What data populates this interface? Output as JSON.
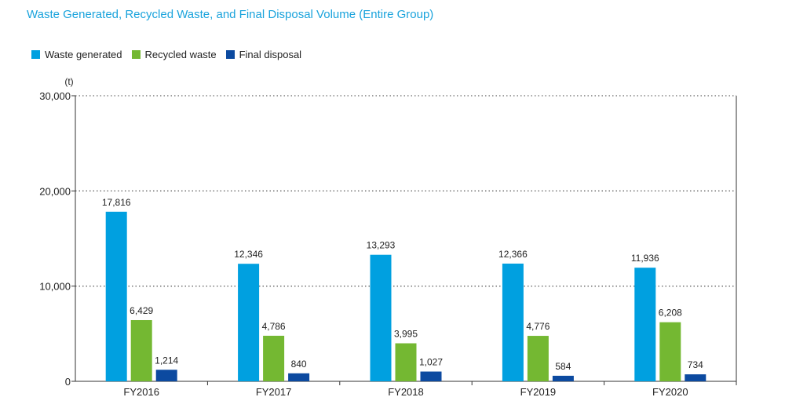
{
  "colors": {
    "title": "#1aa3dc",
    "waste_generated": "#00a0e0",
    "recycled_waste": "#74b832",
    "final_disposal": "#0c4aa0",
    "grid": "#666666",
    "axis": "#333333"
  },
  "chart_data": {
    "type": "bar",
    "title": "Waste Generated, Recycled Waste, and Final Disposal Volume (Entire Group)",
    "unit_label": "(t)",
    "xlabel": "",
    "ylabel": "(t)",
    "ylim": [
      0,
      30000
    ],
    "yticks": [
      0,
      10000,
      20000,
      30000
    ],
    "ytick_labels": [
      "0",
      "10,000",
      "20,000",
      "30,000"
    ],
    "grid": true,
    "legend_position": "top-left",
    "categories": [
      "FY2016",
      "FY2017",
      "FY2018",
      "FY2019",
      "FY2020"
    ],
    "series": [
      {
        "name": "Waste generated",
        "color_key": "waste_generated",
        "values": [
          17816,
          12346,
          13293,
          12366,
          11936
        ],
        "labels": [
          "17,816",
          "12,346",
          "13,293",
          "12,366",
          "11,936"
        ]
      },
      {
        "name": "Recycled waste",
        "color_key": "recycled_waste",
        "values": [
          6429,
          4786,
          3995,
          4776,
          6208
        ],
        "labels": [
          "6,429",
          "4,786",
          "3,995",
          "4,776",
          "6,208"
        ]
      },
      {
        "name": "Final disposal",
        "color_key": "final_disposal",
        "values": [
          1214,
          840,
          1027,
          584,
          734
        ],
        "labels": [
          "1,214",
          "840",
          "1,027",
          "584",
          "734"
        ]
      }
    ]
  }
}
